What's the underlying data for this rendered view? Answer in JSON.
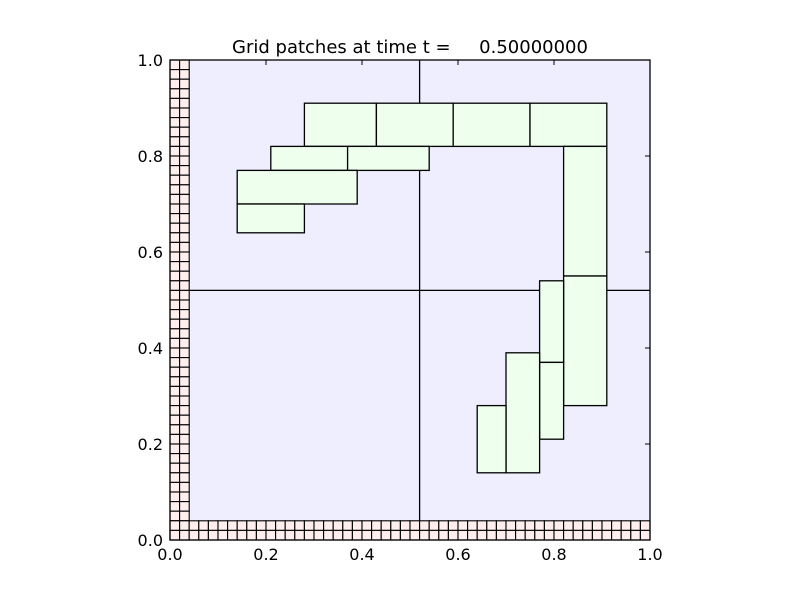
{
  "chart_data": {
    "type": "grid-patches",
    "title": "Grid patches at time t =     0.50000000",
    "xlabel": "",
    "ylabel": "",
    "xlim": [
      0.0,
      1.0
    ],
    "ylim": [
      0.0,
      1.0
    ],
    "x_ticks": [
      0.0,
      0.2,
      0.4,
      0.6,
      0.8,
      1.0
    ],
    "y_ticks": [
      0.0,
      0.2,
      0.4,
      0.6,
      0.8,
      1.0
    ],
    "x_tick_labels": [
      "0.0",
      "0.2",
      "0.4",
      "0.6",
      "0.8",
      "1.0"
    ],
    "y_tick_labels": [
      "0.0",
      "0.2",
      "0.4",
      "0.6",
      "0.8",
      "1.0"
    ],
    "grid": false,
    "colors": {
      "level1_fill": "#eeeeff",
      "level2_fill": "#eeffee",
      "boundary_fill": "#ffeeee",
      "edge": "#000000"
    },
    "level1_divisions": {
      "x": [
        0.52
      ],
      "y": [
        0.52
      ]
    },
    "level2_patches": [
      {
        "x0": 0.28,
        "y0": 0.82,
        "x1": 0.43,
        "y1": 0.91
      },
      {
        "x0": 0.43,
        "y0": 0.82,
        "x1": 0.59,
        "y1": 0.91
      },
      {
        "x0": 0.59,
        "y0": 0.82,
        "x1": 0.75,
        "y1": 0.91
      },
      {
        "x0": 0.75,
        "y0": 0.82,
        "x1": 0.91,
        "y1": 0.91
      },
      {
        "x0": 0.21,
        "y0": 0.77,
        "x1": 0.37,
        "y1": 0.82
      },
      {
        "x0": 0.37,
        "y0": 0.77,
        "x1": 0.54,
        "y1": 0.82
      },
      {
        "x0": 0.14,
        "y0": 0.7,
        "x1": 0.39,
        "y1": 0.77
      },
      {
        "x0": 0.14,
        "y0": 0.64,
        "x1": 0.28,
        "y1": 0.7
      },
      {
        "x0": 0.82,
        "y0": 0.55,
        "x1": 0.91,
        "y1": 0.82
      },
      {
        "x0": 0.82,
        "y0": 0.28,
        "x1": 0.91,
        "y1": 0.55
      },
      {
        "x0": 0.77,
        "y0": 0.37,
        "x1": 0.82,
        "y1": 0.54
      },
      {
        "x0": 0.77,
        "y0": 0.21,
        "x1": 0.82,
        "y1": 0.37
      },
      {
        "x0": 0.7,
        "y0": 0.14,
        "x1": 0.77,
        "y1": 0.39
      },
      {
        "x0": 0.64,
        "y0": 0.14,
        "x1": 0.7,
        "y1": 0.28
      }
    ],
    "boundary_ghost_cells": {
      "left": {
        "x0": 0.0,
        "x1": 0.04,
        "y0": 0.0,
        "y1": 1.0,
        "cols": 2,
        "rows": 50
      },
      "bottom": {
        "x0": 0.0,
        "x1": 1.0,
        "y0": 0.0,
        "y1": 0.04,
        "cols": 50,
        "rows": 2
      }
    }
  }
}
